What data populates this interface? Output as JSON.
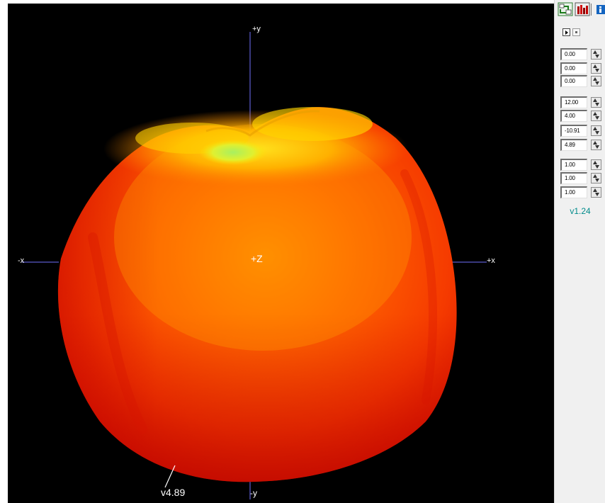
{
  "viewport": {
    "axis_labels": {
      "plus_y": "+y",
      "minus_y": "-y",
      "minus_x": "-x",
      "plus_x": "+x",
      "plus_z": "+Z"
    },
    "value_label": "v4.89",
    "colors": {
      "background": "#000000",
      "axis": "#4a4aa8",
      "surface_edge": "#e81c00",
      "surface_core": "#ff6a00",
      "surface_highlight": "#ffe21a",
      "surface_peak": "#aef25a"
    }
  },
  "toolbar": {
    "icons": [
      "network-view-icon",
      "bar-chart-icon",
      "info-icon"
    ]
  },
  "controls": {
    "position_fields": [
      "0.00",
      "0.00",
      "0.00"
    ],
    "shape_fields": [
      "12.00",
      "4.00",
      "-10.91",
      "4.89"
    ],
    "scale_fields": [
      "1.00",
      "1.00",
      "1.00"
    ]
  },
  "version": "v1.24"
}
